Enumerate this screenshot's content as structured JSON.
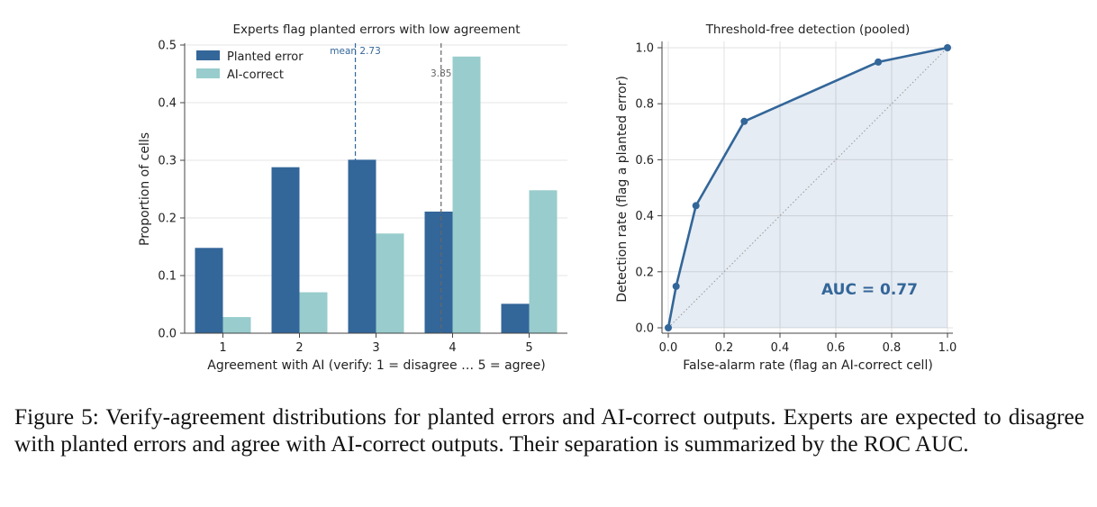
{
  "chart_data": [
    {
      "type": "bar",
      "title": "Experts flag planted errors with low agreement",
      "xlabel": "Agreement with AI (verify: 1 = disagree … 5 = agree)",
      "ylabel": "Proportion of cells",
      "categories": [
        "1",
        "2",
        "3",
        "4",
        "5"
      ],
      "ylim": [
        0,
        0.5
      ],
      "yticks": [
        "0.0",
        "0.1",
        "0.2",
        "0.3",
        "0.4",
        "0.5"
      ],
      "grid": "y",
      "legend": "top-left",
      "series": [
        {
          "name": "Planted error",
          "values": [
            0.148,
            0.288,
            0.301,
            0.211,
            0.051
          ],
          "color": "#336699"
        },
        {
          "name": "AI-correct",
          "values": [
            0.028,
            0.071,
            0.173,
            0.48,
            0.248
          ],
          "color": "#99cccc"
        }
      ],
      "annotations": [
        {
          "text": "mean 2.73",
          "x": 2.73,
          "color": "#336699"
        },
        {
          "text": "3.85",
          "x": 3.85,
          "color": "#666666"
        }
      ]
    },
    {
      "type": "line",
      "title": "Threshold-free detection (pooled)",
      "xlabel": "False-alarm rate (flag an AI-correct cell)",
      "ylabel": "Detection rate (flag a planted error)",
      "xlim": [
        0,
        1
      ],
      "ylim": [
        0,
        1
      ],
      "xticks": [
        "0.0",
        "0.2",
        "0.4",
        "0.6",
        "0.8",
        "1.0"
      ],
      "yticks": [
        "0.0",
        "0.2",
        "0.4",
        "0.6",
        "0.8",
        "1.0"
      ],
      "grid": "both",
      "series": [
        {
          "x": [
            0,
            0.028,
            0.099,
            0.272,
            0.752,
            1.0
          ],
          "y": [
            0,
            0.148,
            0.436,
            0.737,
            0.949,
            1.0
          ],
          "color": "#336699"
        }
      ],
      "reference": "diagonal",
      "annotation": "AUC = 0.77"
    }
  ],
  "caption": "Figure 5: Verify-agreement distributions for planted errors and AI-correct outputs. Experts are expected to disagree with planted errors and agree with AI-correct outputs. Their separation is summarized by the ROC AUC."
}
